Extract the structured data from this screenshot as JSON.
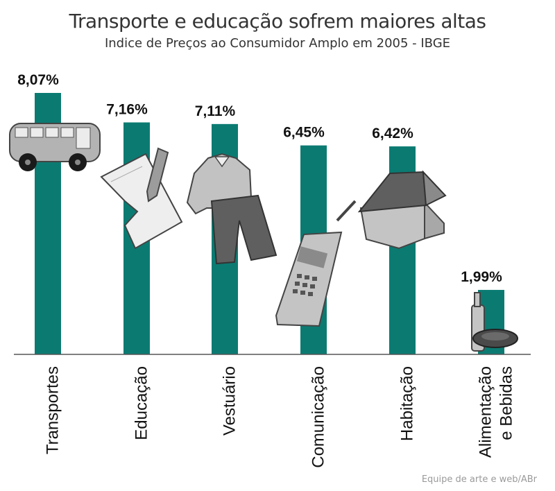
{
  "chart_data": {
    "type": "bar",
    "title": "Transporte e educação sofrem maiores altas",
    "subtitle": "Indice de Preços ao Consumidor Amplo em 2005 - IBGE",
    "categories": [
      [
        "Transportes"
      ],
      [
        "Educação"
      ],
      [
        "Vestuário"
      ],
      [
        "Comunicação"
      ],
      [
        "Habitação"
      ],
      [
        "Alimentação",
        "e Bebidas"
      ]
    ],
    "values": [
      8.07,
      7.16,
      7.11,
      6.45,
      6.42,
      1.99
    ],
    "value_labels": [
      "8,07%",
      "7,16%",
      "7,11%",
      "6,45%",
      "6,42%",
      "1,99%"
    ],
    "icons": [
      "bus-icon",
      "paper-pencil-icon",
      "clothes-icon",
      "cellphone-icon",
      "house-icon",
      "bottle-plate-icon"
    ],
    "bar_color": "#0b7b72",
    "ylim": [
      0,
      8.07
    ],
    "grid": false,
    "legend": "none"
  },
  "footer": {
    "credit": "Equipe de arte e web/ABr"
  }
}
